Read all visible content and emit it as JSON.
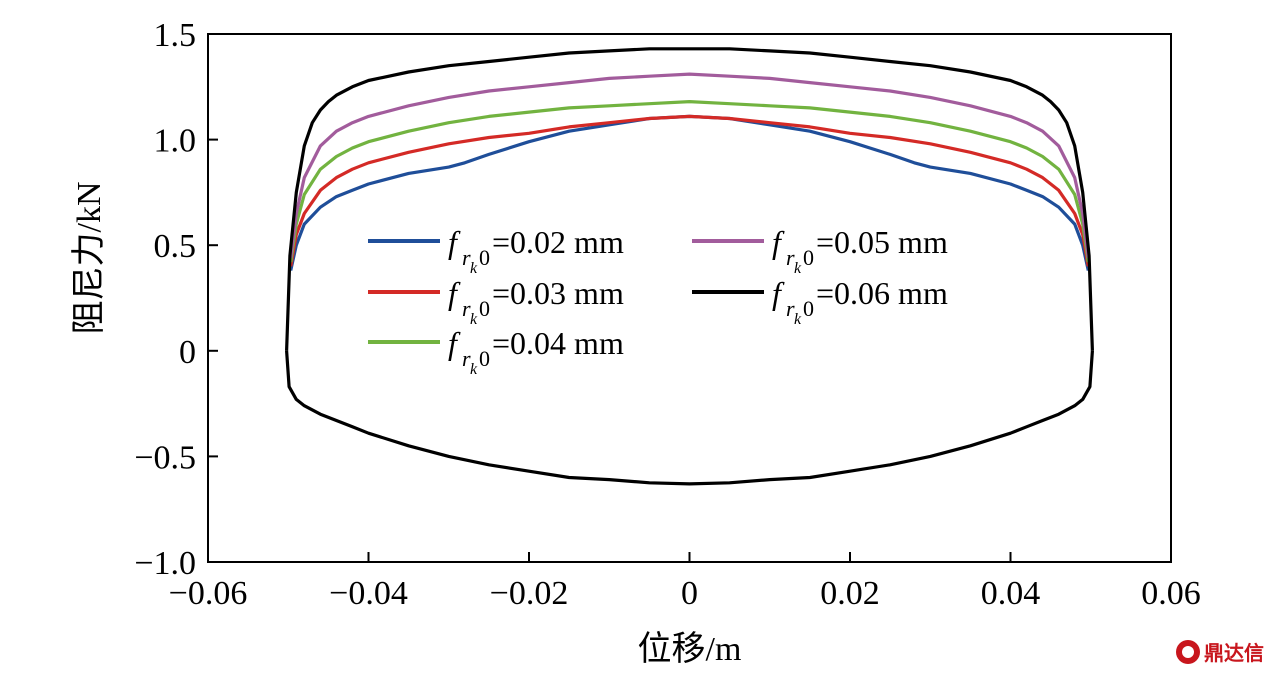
{
  "chart_data": {
    "type": "line",
    "title": "",
    "xlabel": "位移/m",
    "ylabel": "阻尼力/kN",
    "xlim": [
      -0.06,
      0.06
    ],
    "ylim": [
      -1.0,
      1.5
    ],
    "grid": false,
    "xticks": [
      -0.06,
      -0.04,
      -0.02,
      0,
      0.02,
      0.04,
      0.06
    ],
    "xtick_labels": [
      "−0.06",
      "−0.04",
      "−0.02",
      "0",
      "0.02",
      "0.04",
      "0.06"
    ],
    "yticks": [
      -1.0,
      -0.5,
      0,
      0.5,
      1.0,
      1.5
    ],
    "ytick_labels": [
      "−1.0",
      "−0.5",
      "0",
      "0.5",
      "1.0",
      "1.5"
    ],
    "legend_position": "center",
    "legend_columns": 2,
    "series": [
      {
        "name": "f_rk0=0.02 mm",
        "legend_prefix": "f",
        "legend_sub": "r",
        "legend_subsub": "k",
        "legend_tail": "0",
        "legend_value": "=0.02 mm",
        "color": "#1f4e99",
        "upper": {
          "x": [
            -0.0497,
            -0.049,
            -0.048,
            -0.046,
            -0.044,
            -0.042,
            -0.04,
            -0.035,
            -0.03,
            -0.028,
            -0.025,
            -0.02,
            -0.015,
            -0.01,
            -0.005,
            0,
            0.005,
            0.01,
            0.015,
            0.02,
            0.025,
            0.028,
            0.03,
            0.035,
            0.04,
            0.042,
            0.044,
            0.046,
            0.048,
            0.049,
            0.0497
          ],
          "y": [
            0.38,
            0.5,
            0.6,
            0.68,
            0.73,
            0.76,
            0.79,
            0.84,
            0.87,
            0.89,
            0.93,
            0.99,
            1.04,
            1.07,
            1.1,
            1.11,
            1.1,
            1.07,
            1.04,
            0.99,
            0.93,
            0.89,
            0.87,
            0.84,
            0.79,
            0.76,
            0.73,
            0.68,
            0.6,
            0.5,
            0.38
          ]
        }
      },
      {
        "name": "f_rk0=0.03 mm",
        "legend_prefix": "f",
        "legend_sub": "r",
        "legend_subsub": "k",
        "legend_tail": "0",
        "legend_value": "=0.03 mm",
        "color": "#d42a26",
        "upper": {
          "x": [
            -0.0497,
            -0.049,
            -0.048,
            -0.046,
            -0.044,
            -0.042,
            -0.04,
            -0.035,
            -0.03,
            -0.025,
            -0.02,
            -0.015,
            -0.01,
            -0.005,
            0,
            0.005,
            0.01,
            0.015,
            0.02,
            0.025,
            0.03,
            0.035,
            0.04,
            0.042,
            0.044,
            0.046,
            0.048,
            0.049,
            0.0497
          ],
          "y": [
            0.4,
            0.55,
            0.65,
            0.76,
            0.82,
            0.86,
            0.89,
            0.94,
            0.98,
            1.01,
            1.03,
            1.06,
            1.08,
            1.1,
            1.11,
            1.1,
            1.08,
            1.06,
            1.03,
            1.01,
            0.98,
            0.94,
            0.89,
            0.86,
            0.82,
            0.76,
            0.65,
            0.55,
            0.4
          ]
        }
      },
      {
        "name": "f_rk0=0.04 mm",
        "legend_prefix": "f",
        "legend_sub": "r",
        "legend_subsub": "k",
        "legend_tail": "0",
        "legend_value": "=0.04 mm",
        "color": "#72b340",
        "upper": {
          "x": [
            -0.0497,
            -0.049,
            -0.048,
            -0.046,
            -0.044,
            -0.042,
            -0.04,
            -0.035,
            -0.03,
            -0.025,
            -0.02,
            -0.015,
            -0.01,
            -0.005,
            0,
            0.005,
            0.01,
            0.015,
            0.02,
            0.025,
            0.03,
            0.035,
            0.04,
            0.042,
            0.044,
            0.046,
            0.048,
            0.049,
            0.0497
          ],
          "y": [
            0.42,
            0.6,
            0.74,
            0.86,
            0.92,
            0.96,
            0.99,
            1.04,
            1.08,
            1.11,
            1.13,
            1.15,
            1.16,
            1.17,
            1.18,
            1.17,
            1.16,
            1.15,
            1.13,
            1.11,
            1.08,
            1.04,
            0.99,
            0.96,
            0.92,
            0.86,
            0.74,
            0.6,
            0.42
          ]
        }
      },
      {
        "name": "f_rk0=0.05 mm",
        "legend_prefix": "f",
        "legend_sub": "r",
        "legend_subsub": "k",
        "legend_tail": "0",
        "legend_value": "=0.05 mm",
        "color": "#a25c9c",
        "upper": {
          "x": [
            -0.0497,
            -0.049,
            -0.048,
            -0.046,
            -0.044,
            -0.042,
            -0.04,
            -0.035,
            -0.03,
            -0.025,
            -0.02,
            -0.015,
            -0.01,
            -0.005,
            0,
            0.005,
            0.01,
            0.015,
            0.02,
            0.025,
            0.03,
            0.035,
            0.04,
            0.042,
            0.044,
            0.046,
            0.048,
            0.049,
            0.0497
          ],
          "y": [
            0.44,
            0.65,
            0.82,
            0.97,
            1.04,
            1.08,
            1.11,
            1.16,
            1.2,
            1.23,
            1.25,
            1.27,
            1.29,
            1.3,
            1.31,
            1.3,
            1.29,
            1.27,
            1.25,
            1.23,
            1.2,
            1.16,
            1.11,
            1.08,
            1.04,
            0.97,
            0.82,
            0.65,
            0.44
          ]
        }
      },
      {
        "name": "f_rk0=0.06 mm",
        "legend_prefix": "f",
        "legend_sub": "r",
        "legend_subsub": "k",
        "legend_tail": "0",
        "legend_value": "=0.06 mm",
        "color": "#000000",
        "upper": {
          "x": [
            -0.0502,
            -0.0498,
            -0.049,
            -0.048,
            -0.047,
            -0.046,
            -0.045,
            -0.044,
            -0.042,
            -0.04,
            -0.035,
            -0.03,
            -0.025,
            -0.02,
            -0.015,
            -0.01,
            -0.005,
            0,
            0.005,
            0.01,
            0.015,
            0.02,
            0.025,
            0.03,
            0.035,
            0.04,
            0.042,
            0.044,
            0.045,
            0.046,
            0.047,
            0.048,
            0.049,
            0.0498,
            0.0502
          ],
          "y": [
            0.0,
            0.45,
            0.75,
            0.97,
            1.08,
            1.14,
            1.18,
            1.21,
            1.25,
            1.28,
            1.32,
            1.35,
            1.37,
            1.39,
            1.41,
            1.42,
            1.43,
            1.43,
            1.43,
            1.42,
            1.41,
            1.39,
            1.37,
            1.35,
            1.32,
            1.28,
            1.25,
            1.21,
            1.18,
            1.14,
            1.08,
            0.97,
            0.75,
            0.45,
            0.0
          ]
        },
        "lower": {
          "x": [
            -0.0502,
            -0.0499,
            -0.049,
            -0.048,
            -0.046,
            -0.044,
            -0.042,
            -0.04,
            -0.035,
            -0.03,
            -0.025,
            -0.02,
            -0.015,
            -0.01,
            -0.005,
            0,
            0.005,
            0.01,
            0.015,
            0.02,
            0.025,
            0.03,
            0.035,
            0.04,
            0.042,
            0.044,
            0.046,
            0.048,
            0.049,
            0.0499,
            0.0502
          ],
          "y": [
            0.0,
            -0.17,
            -0.23,
            -0.26,
            -0.3,
            -0.33,
            -0.36,
            -0.39,
            -0.45,
            -0.5,
            -0.54,
            -0.57,
            -0.6,
            -0.61,
            -0.625,
            -0.63,
            -0.625,
            -0.61,
            -0.6,
            -0.57,
            -0.54,
            -0.5,
            -0.45,
            -0.39,
            -0.36,
            -0.33,
            -0.3,
            -0.26,
            -0.23,
            -0.17,
            0.0
          ]
        }
      }
    ]
  },
  "watermark": {
    "text": "鼎达信",
    "icon": "logo-icon"
  }
}
